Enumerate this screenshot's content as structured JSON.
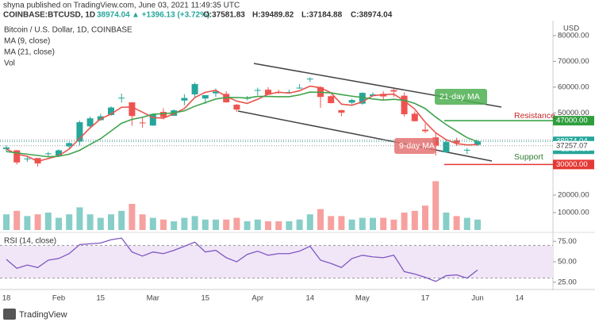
{
  "header": {
    "publisher": "shyna published on TradingView.com, June 03, 2021 11:49:35 UTC",
    "symbol": "COINBASE:BTCUSD, 1D",
    "last": "38974.04",
    "change": "▲ +1396.13 (+3.72%)",
    "open": "O:37581.83",
    "high": "H:39489.82",
    "low": "L:37184.88",
    "close": "C:38974.04"
  },
  "chart_data": [
    {
      "type": "candlestick",
      "title": "Bitcoin / U.S. Dollar, 1D, COINBASE",
      "axis_unit": "USD",
      "categories": [
        "18",
        null,
        null,
        null,
        null,
        "Feb",
        null,
        null,
        null,
        "15",
        null,
        null,
        null,
        null,
        "Mar",
        null,
        null,
        null,
        null,
        "15",
        null,
        null,
        null,
        null,
        "Apr",
        null,
        null,
        null,
        null,
        "14",
        null,
        null,
        null,
        null,
        "May",
        null,
        null,
        null,
        null,
        null,
        "17",
        null,
        null,
        null,
        null,
        "Jun",
        null,
        null,
        null,
        "14",
        null,
        null,
        null
      ],
      "open": [
        36000,
        35500,
        32000,
        32500,
        34300,
        33500,
        37000,
        38900,
        44800,
        47200,
        49200,
        55900,
        54100,
        46300,
        45100,
        50400,
        48900,
        54800,
        57200,
        55600,
        57600,
        57400,
        53200,
        55800,
        58700,
        59000,
        58200,
        58000,
        59800,
        63100,
        60000,
        56500,
        51100,
        54000,
        53600,
        56600,
        57400,
        58900,
        56700,
        49700,
        43500,
        40500,
        34700,
        39300,
        35700,
        37600,
        null,
        null,
        null,
        null,
        null,
        null,
        null
      ],
      "high": [
        37400,
        35600,
        33000,
        32500,
        34900,
        35900,
        38700,
        47000,
        48600,
        49700,
        52600,
        57500,
        54200,
        48300,
        49800,
        51800,
        51400,
        57300,
        61800,
        56900,
        59500,
        58400,
        53500,
        56600,
        59800,
        60000,
        59000,
        59000,
        61200,
        63800,
        60400,
        56800,
        51200,
        55500,
        58000,
        58000,
        58400,
        59300,
        58000,
        50600,
        45800,
        42200,
        39800,
        40400,
        36400,
        39500,
        null,
        null,
        null,
        null,
        null,
        null,
        null
      ],
      "low": [
        34800,
        30000,
        31000,
        29200,
        32800,
        33400,
        36200,
        37400,
        43800,
        47000,
        48900,
        54000,
        45000,
        44200,
        45000,
        47500,
        48900,
        53000,
        56100,
        53500,
        56200,
        54000,
        50400,
        54900,
        56800,
        57000,
        57400,
        57600,
        59300,
        62000,
        52000,
        53700,
        48700,
        53300,
        53200,
        56500,
        55200,
        56200,
        48600,
        46700,
        42200,
        33500,
        34700,
        37200,
        34000,
        37200,
        null,
        null,
        null,
        null,
        null,
        null,
        null
      ],
      "close": [
        36600,
        30800,
        32300,
        30400,
        34300,
        35500,
        38300,
        46400,
        47900,
        48700,
        52100,
        55900,
        48800,
        46100,
        49600,
        48400,
        51000,
        55800,
        61200,
        56900,
        58300,
        54100,
        51300,
        55800,
        58900,
        57100,
        58000,
        58100,
        59800,
        63300,
        56200,
        53800,
        50100,
        55000,
        57800,
        57200,
        56400,
        58300,
        49500,
        46800,
        42900,
        37300,
        38700,
        38400,
        35700,
        38970,
        null,
        null,
        null,
        null,
        null,
        null,
        null
      ],
      "up_color": "#26a69a",
      "down_color": "#ef5350",
      "series": [
        {
          "name": "MA (9, close)",
          "color": "#e8544d",
          "values": [
            36000,
            34000,
            33200,
            31200,
            32300,
            33400,
            36000,
            40100,
            44200,
            47700,
            49600,
            52200,
            52300,
            50300,
            48200,
            48000,
            49700,
            51700,
            56000,
            58000,
            58800,
            56400,
            54600,
            53700,
            55300,
            57300,
            58000,
            57700,
            58600,
            60400,
            59800,
            57800,
            53400,
            53000,
            54300,
            56700,
            57100,
            57300,
            54700,
            51500,
            46400,
            42300,
            39600,
            38100,
            37600,
            37700,
            null,
            null,
            null,
            null,
            null,
            null,
            null
          ]
        },
        {
          "name": "MA (21, close)",
          "color": "#3fa34d",
          "values": [
            35000,
            34500,
            34000,
            33500,
            33000,
            33200,
            34000,
            35500,
            37800,
            40000,
            43000,
            46000,
            47500,
            48300,
            49500,
            49700,
            50000,
            50800,
            52600,
            54000,
            55400,
            56000,
            56000,
            55800,
            56400,
            56400,
            56300,
            56300,
            57000,
            58100,
            58000,
            57800,
            57100,
            56500,
            56000,
            55400,
            55000,
            55300,
            54900,
            53700,
            51700,
            48400,
            45500,
            42900,
            40400,
            38900,
            null,
            null,
            null,
            null,
            null,
            null,
            null
          ]
        }
      ],
      "ylim": [
        25500,
        85200
      ],
      "yticks": [
        {
          "value": 80000,
          "label": "80000.00"
        },
        {
          "value": 70000,
          "label": "70000.00"
        },
        {
          "value": 60000,
          "label": "60000.00"
        },
        {
          "value": 50000,
          "label": "50000.00"
        }
      ],
      "price_tags": [
        {
          "value": 47000,
          "label": "47000.00",
          "color": "#2e9e3c"
        },
        {
          "value": 39495.06,
          "label": "39495.06"
        },
        {
          "value": 38974.04,
          "label": "38974.04",
          "sublabel": "12:10:39",
          "color": "#26a69a"
        },
        {
          "value": 37257.07,
          "label": "37257.07"
        },
        {
          "value": 30000,
          "label": "30000.00",
          "color": "#e53935"
        }
      ],
      "annotations": [
        {
          "text": "Resistance",
          "color": "#c62828"
        },
        {
          "text": "Support",
          "color": "#2e7d32"
        },
        {
          "text": "21-day MA",
          "color": "#4caf50"
        },
        {
          "text": "9-day MA",
          "color": "#e57373"
        }
      ]
    },
    {
      "type": "bar",
      "title": "Vol",
      "values": [
        9000,
        11000,
        8000,
        9000,
        10000,
        7000,
        9000,
        13000,
        9000,
        7000,
        9000,
        11000,
        15000,
        9000,
        7000,
        6000,
        5000,
        7000,
        8000,
        6000,
        6000,
        6000,
        7000,
        5000,
        6000,
        5000,
        5000,
        5000,
        6000,
        9000,
        12000,
        8000,
        8000,
        6000,
        7000,
        7000,
        7000,
        6000,
        10000,
        11000,
        14000,
        28000,
        10000,
        8000,
        7000,
        6000,
        null,
        null,
        null,
        null,
        null,
        null,
        null
      ],
      "ylim": [
        0,
        50000
      ],
      "yticks": [
        {
          "value": 20000,
          "label": "20000.00"
        },
        {
          "value": 10000,
          "label": "10000.00"
        }
      ]
    },
    {
      "type": "line",
      "title": "RSI (14, close)",
      "color": "#7e57c2",
      "band_color": "#f1e6f7",
      "band": [
        30,
        70
      ],
      "values": [
        53,
        42,
        46,
        43,
        52,
        54,
        60,
        71,
        72,
        73,
        77,
        79,
        62,
        57,
        62,
        60,
        64,
        69,
        74,
        62,
        64,
        55,
        50,
        59,
        63,
        58,
        60,
        60,
        63,
        69,
        52,
        48,
        43,
        54,
        58,
        56,
        55,
        58,
        38,
        35,
        31,
        26,
        33,
        34,
        30,
        40,
        null,
        null,
        null,
        null,
        null,
        null,
        null
      ],
      "ylim": [
        19,
        84
      ],
      "yticks": [
        {
          "value": 75,
          "label": "75.00"
        },
        {
          "value": 50,
          "label": "50.00"
        },
        {
          "value": 25,
          "label": "25.00"
        }
      ]
    }
  ],
  "footer": {
    "brand": "TradingView"
  }
}
